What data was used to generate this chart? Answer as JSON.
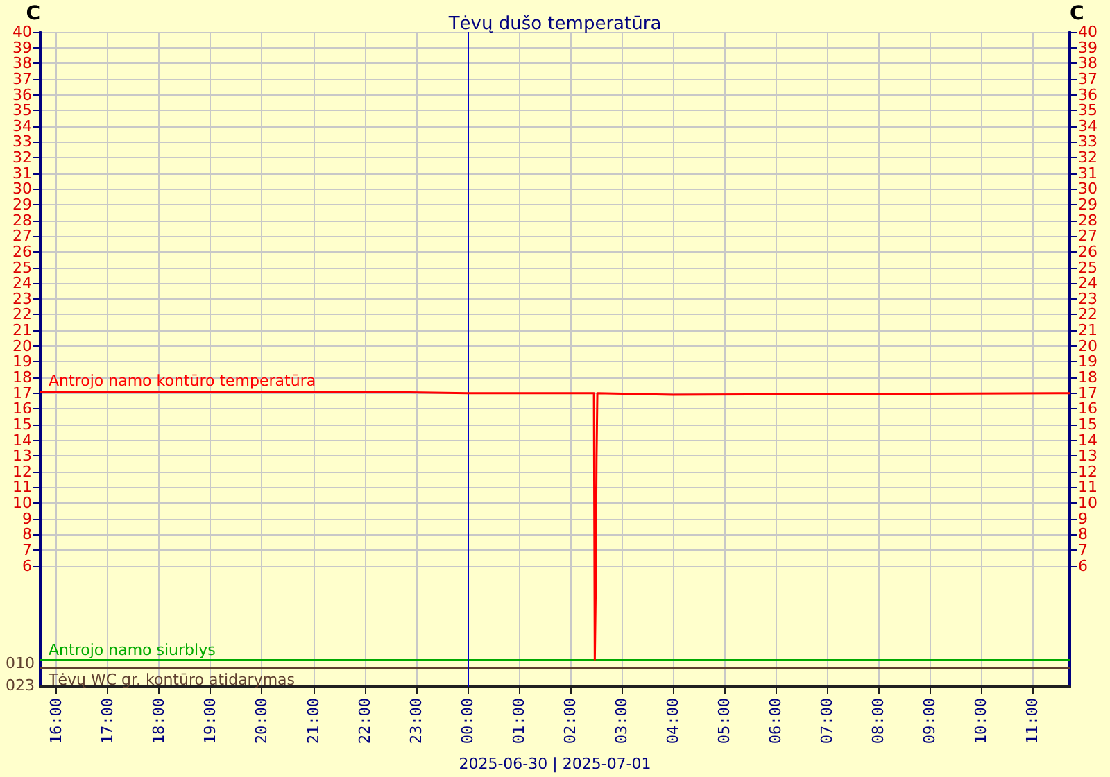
{
  "chart_data": {
    "type": "line",
    "title": "Tėvų dušo temperatūra",
    "ylabel": "C",
    "y2label": "C",
    "annotations": [
      "2025-06-30 | 2025-07-01",
      {
        "text": "010",
        "x": "2025-06-30T15:41",
        "y": -0.2
      },
      "023"
    ],
    "xlim": [
      "2025-06-30T15:41",
      "2025-07-01T11:44"
    ],
    "xticks": [
      {
        "value": "2025-06-30T16:00",
        "label": "16:00"
      },
      {
        "value": "2025-06-30T17:00",
        "label": "17:00"
      },
      {
        "value": "2025-06-30T18:00",
        "label": "18:00"
      },
      {
        "value": "2025-06-30T19:00",
        "label": "19:00"
      },
      {
        "value": "2025-06-30T20:00",
        "label": "20:00"
      },
      {
        "value": "2025-06-30T21:00",
        "label": "21:00"
      },
      {
        "value": "2025-06-30T22:00",
        "label": "22:00"
      },
      {
        "value": "2025-06-30T23:00",
        "label": "23:00"
      },
      {
        "value": "2025-07-01T00:00",
        "label": "00:00"
      },
      {
        "value": "2025-07-01T01:00",
        "label": "01:00"
      },
      {
        "value": "2025-07-01T02:00",
        "label": "02:00"
      },
      {
        "value": "2025-07-01T03:00",
        "label": "03:00"
      },
      {
        "value": "2025-07-01T04:00",
        "label": "04:00"
      },
      {
        "value": "2025-07-01T05:00",
        "label": "05:00"
      },
      {
        "value": "2025-07-01T06:00",
        "label": "06:00"
      },
      {
        "value": "2025-07-01T07:00",
        "label": "07:00"
      },
      {
        "value": "2025-07-01T08:00",
        "label": "08:00"
      },
      {
        "value": "2025-07-01T09:00",
        "label": "09:00"
      },
      {
        "value": "2025-07-01T10:00",
        "label": "10:00"
      },
      {
        "value": "2025-07-01T11:00",
        "label": "11:00"
      }
    ],
    "ylim": [
      -1.7,
      40
    ],
    "yticks": [
      6,
      7,
      8,
      9,
      10,
      11,
      12,
      13,
      14,
      15,
      16,
      17,
      18,
      19,
      20,
      21,
      22,
      23,
      24,
      25,
      26,
      27,
      28,
      29,
      30,
      31,
      32,
      33,
      34,
      35,
      36,
      37,
      38,
      39,
      40
    ],
    "y2lim": [
      -1.7,
      40
    ],
    "y2ticks": [
      6,
      7,
      8,
      9,
      10,
      11,
      12,
      13,
      14,
      15,
      16,
      17,
      18,
      19,
      20,
      21,
      22,
      23,
      24,
      25,
      26,
      27,
      28,
      29,
      30,
      31,
      32,
      33,
      34,
      35,
      36,
      37,
      38,
      39,
      40
    ],
    "grid": true,
    "ref_lines": [
      {
        "axis": "x",
        "value": "2025-07-01T00:00",
        "color": "#0000cc"
      }
    ],
    "series": [
      {
        "name": "Antrojo namo kontūro temperatūra",
        "color": "#ff0000",
        "x": [
          "2025-06-30T15:41",
          "2025-06-30T22:00",
          "2025-07-01T00:00",
          "2025-07-01T02:28",
          "2025-07-01T02:29",
          "2025-07-01T02:30",
          "2025-07-01T02:31",
          "2025-07-01T02:32",
          "2025-07-01T04:00",
          "2025-07-01T11:44"
        ],
        "values": [
          17.1,
          17.1,
          17,
          17,
          0,
          4.3,
          12.8,
          17,
          16.9,
          17
        ]
      },
      {
        "name": "Antrojo namo siurblys",
        "color": "#00aa00",
        "x": [
          "2025-06-30T15:41",
          "2025-07-01T11:44"
        ],
        "values": [
          0,
          0
        ]
      },
      {
        "name": "Tėvų WC gr. kontūro atidarymas",
        "color": "#604030",
        "x": [
          "2025-06-30T15:41",
          "2025-07-01T11:44"
        ],
        "values": [
          -0.5,
          -0.5
        ]
      }
    ]
  }
}
